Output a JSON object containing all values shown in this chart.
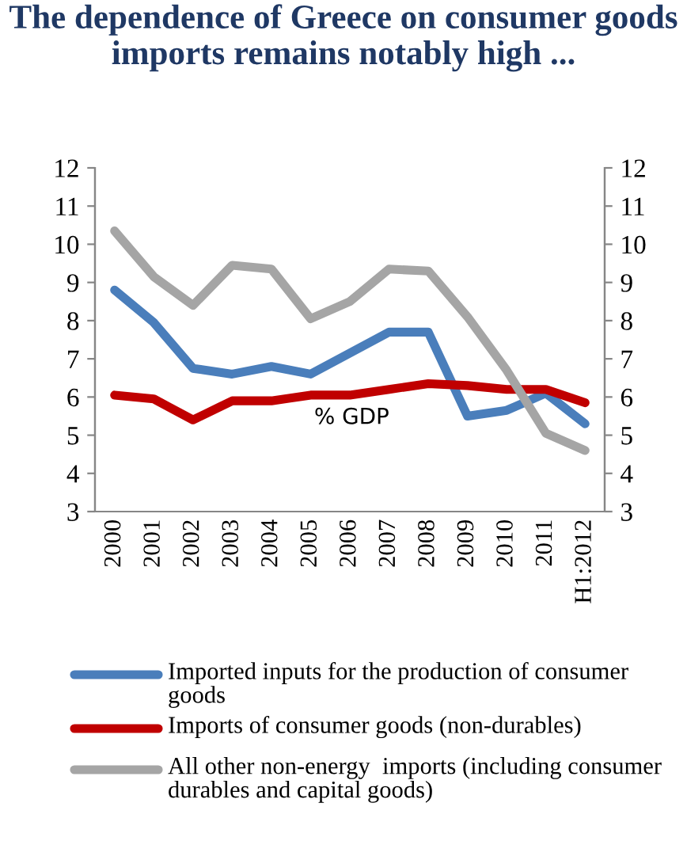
{
  "chart_data": {
    "type": "line",
    "title": "The dependence of Greece on consumer goods imports remains notably high ...",
    "categories": [
      "2000",
      "2001",
      "2002",
      "2003",
      "2004",
      "2005",
      "2006",
      "2007",
      "2008",
      "2009",
      "2010",
      "2011",
      "H1:2012"
    ],
    "series": [
      {
        "name": "Imported inputs for the production of consumer goods",
        "color": "#4a7ebb",
        "values": [
          8.8,
          7.95,
          6.75,
          6.6,
          6.8,
          6.6,
          7.15,
          7.7,
          7.7,
          5.5,
          5.65,
          6.1,
          5.3
        ]
      },
      {
        "name": "Imports of consumer goods (non-durables)",
        "color": "#c00000",
        "values": [
          6.05,
          5.95,
          5.4,
          5.9,
          5.9,
          6.05,
          6.05,
          6.2,
          6.35,
          6.3,
          6.2,
          6.2,
          5.85
        ]
      },
      {
        "name": "All other non-energy  imports (including consumer durables and capital goods)",
        "color": "#a5a5a5",
        "values": [
          10.35,
          9.15,
          8.4,
          9.45,
          9.35,
          8.05,
          8.5,
          9.35,
          9.3,
          8.1,
          6.7,
          5.05,
          4.6
        ]
      }
    ],
    "annotations": [
      "% GDP"
    ],
    "ylim": [
      3,
      12
    ],
    "yticks": [
      3,
      4,
      5,
      6,
      7,
      8,
      9,
      10,
      11,
      12
    ],
    "y2lim": [
      3,
      12
    ],
    "y2ticks": [
      3,
      4,
      5,
      6,
      7,
      8,
      9,
      10,
      11,
      12
    ],
    "grid": false,
    "legend": "bottom",
    "marker": "none",
    "line_style": "solid"
  }
}
